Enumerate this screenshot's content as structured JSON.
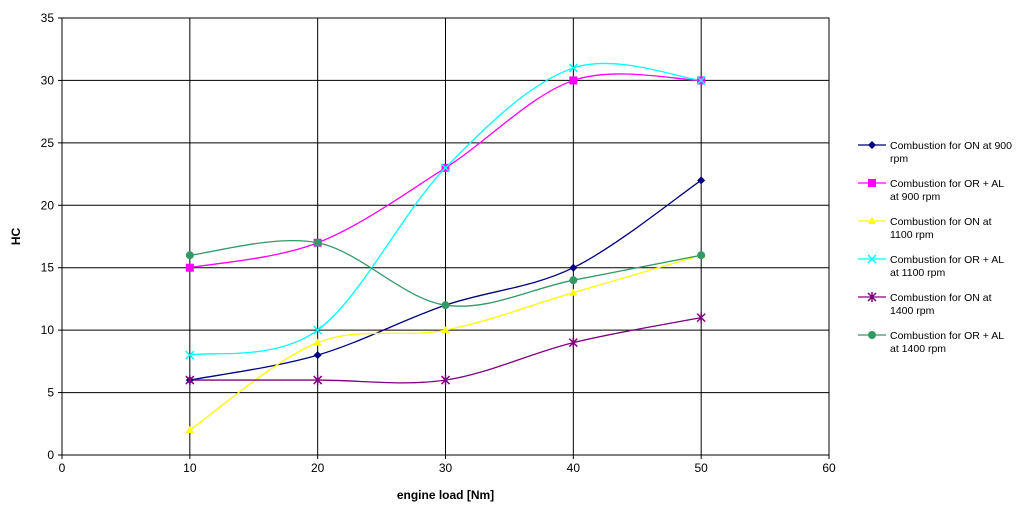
{
  "chart_data": {
    "type": "line",
    "title": "",
    "xlabel": "engine load [Nm]",
    "ylabel": "HC",
    "xlim": [
      0,
      60
    ],
    "ylim": [
      0,
      35
    ],
    "x_ticks": [
      0,
      10,
      20,
      30,
      40,
      50,
      60
    ],
    "y_ticks": [
      0,
      5,
      10,
      15,
      20,
      25,
      30,
      35
    ],
    "grid": true,
    "smooth": true,
    "legend_position": "right",
    "x": [
      10,
      20,
      30,
      40,
      50
    ],
    "series": [
      {
        "name": "Combustion for ON at 900 rpm",
        "legend_lines": [
          "Combustion for ON at 900",
          "rpm"
        ],
        "color": "#000080",
        "marker": "diamond",
        "values": [
          6,
          8,
          12,
          15,
          22
        ]
      },
      {
        "name": "Combustion for OR + AL at 900 rpm",
        "legend_lines": [
          "Combustion for OR + AL",
          "at 900 rpm"
        ],
        "color": "#FF00FF",
        "marker": "square",
        "values": [
          15,
          17,
          23,
          30,
          30
        ]
      },
      {
        "name": "Combustion for ON at 1100 rpm",
        "legend_lines": [
          "Combustion for ON at",
          "1100 rpm"
        ],
        "color": "#FFFF00",
        "marker": "triangle",
        "values": [
          2,
          9,
          10,
          13,
          16
        ]
      },
      {
        "name": "Combustion for OR + AL at 1100 rpm",
        "legend_lines": [
          "Combustion for OR + AL",
          "at 1100 rpm"
        ],
        "color": "#00FFFF",
        "marker": "x",
        "values": [
          8,
          10,
          23,
          31,
          30
        ]
      },
      {
        "name": "Combustion for ON at 1400 rpm",
        "legend_lines": [
          "Combustion for ON at",
          "1400 rpm"
        ],
        "color": "#800080",
        "marker": "star",
        "values": [
          6,
          6,
          6,
          9,
          11
        ]
      },
      {
        "name": "Combustion for OR + AL at 1400 rpm",
        "legend_lines": [
          "Combustion for OR + AL",
          "at 1400 rpm"
        ],
        "color": "#339966",
        "marker": "circle",
        "values": [
          16,
          17,
          12,
          14,
          16
        ]
      }
    ]
  }
}
